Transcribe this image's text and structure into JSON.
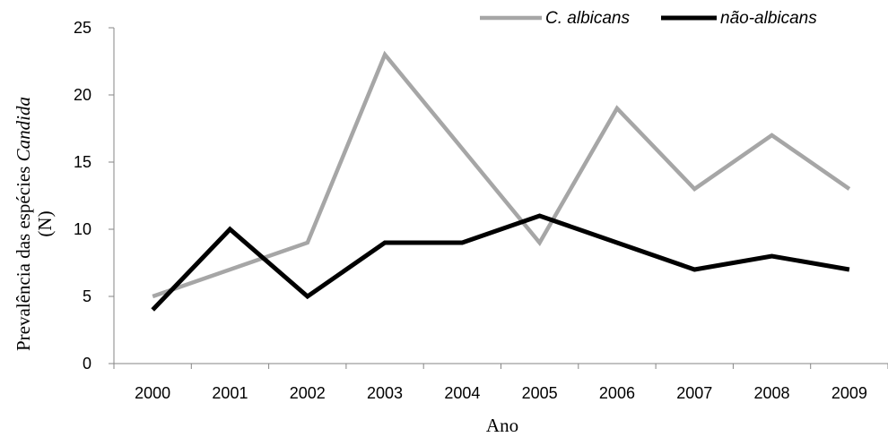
{
  "chart_data": {
    "type": "line",
    "categories": [
      "2000",
      "2001",
      "2002",
      "2003",
      "2004",
      "2005",
      "2006",
      "2007",
      "2008",
      "2009"
    ],
    "series": [
      {
        "name": "C. albicans",
        "values": [
          5,
          7,
          9,
          23,
          16,
          9,
          19,
          13,
          17,
          13
        ],
        "color": "#a6a6a6"
      },
      {
        "name": "não-albicans",
        "values": [
          4,
          10,
          5,
          9,
          9,
          11,
          9,
          7,
          8,
          7
        ],
        "color": "#000000"
      }
    ],
    "xlabel": "Ano",
    "ylabel_line1_prefix": "Prevalência das espécies ",
    "ylabel_line1_italic": "Candida",
    "ylabel_line2": "(N)",
    "ylim": [
      0,
      25
    ],
    "yticks": [
      0,
      5,
      10,
      15,
      20,
      25
    ],
    "grid": false,
    "legend_position": "top-right"
  }
}
